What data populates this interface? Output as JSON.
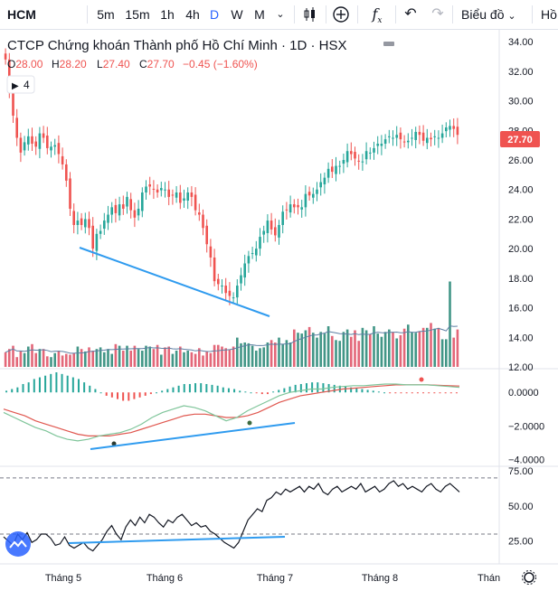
{
  "toolbar": {
    "symbol": "HCM",
    "intervals": [
      "5m",
      "15m",
      "1h",
      "4h",
      "D",
      "W",
      "M"
    ],
    "active_interval": "D",
    "chart_type_label": "Biểu đồ",
    "overflow_label": "Hồ"
  },
  "legend": {
    "title": "CTCP Chứng khoán Thành phố Hồ Chí Minh · 1D · HSX",
    "o_label": "O",
    "o_value": "28.00",
    "h_label": "H",
    "h_value": "28.20",
    "l_label": "L",
    "l_value": "27.40",
    "c_label": "C",
    "c_value": "27.70",
    "change": "−0.45 (−1.60%)",
    "indicators_count": "4"
  },
  "colors": {
    "up": "#26a69a",
    "down": "#ef5350",
    "volume_up": "#2e8b7a",
    "volume_down": "#e0576a",
    "trendline": "#2f9bef",
    "price_tag": "#ef5350"
  },
  "chart_data": {
    "type": "candlestick",
    "price_axis": {
      "ticks": [
        "34.00",
        "32.00",
        "30.00",
        "28.00",
        "26.00",
        "24.00",
        "22.00",
        "20.00",
        "18.00",
        "16.00",
        "14.00",
        "12.00"
      ],
      "range": [
        12,
        34.5
      ]
    },
    "last_price": "27.70",
    "x_labels": [
      "Tháng 5",
      "Tháng 6",
      "Tháng 7",
      "Tháng 8",
      "Thán"
    ],
    "closes": [
      32.8,
      30.6,
      29.0,
      27.5,
      26.5,
      27.2,
      27.6,
      27.1,
      26.9,
      27.8,
      27.5,
      26.8,
      26.9,
      27.0,
      26.4,
      25.7,
      24.6,
      22.7,
      21.6,
      21.9,
      21.6,
      22.0,
      21.4,
      20.0,
      21.0,
      21.2,
      21.9,
      22.3,
      22.8,
      22.4,
      23.0,
      22.7,
      23.5,
      22.6,
      22.1,
      22.7,
      23.8,
      24.2,
      24.2,
      24.0,
      23.8,
      24.1,
      24.0,
      23.5,
      23.6,
      23.8,
      23.1,
      23.4,
      23.8,
      23.5,
      22.6,
      22.3,
      21.4,
      20.3,
      19.4,
      17.8,
      17.6,
      17.5,
      17.0,
      16.8,
      16.7,
      17.5,
      18.2,
      19.0,
      19.5,
      19.7,
      20.0,
      20.8,
      21.2,
      21.9,
      21.3,
      20.9,
      21.6,
      22.5,
      22.6,
      23.0,
      22.8,
      22.8,
      22.8,
      23.7,
      23.6,
      23.7,
      24.0,
      24.5,
      24.8,
      25.4,
      25.2,
      25.6,
      25.6,
      26.0,
      26.6,
      26.4,
      26.1,
      25.9,
      25.9,
      26.6,
      26.5,
      26.8,
      27.1,
      27.1,
      27.4,
      27.6,
      27.5,
      27.7,
      27.4,
      27.2,
      27.3,
      27.5,
      27.9,
      27.7,
      27.3,
      27.5,
      27.4,
      27.6,
      27.5,
      27.8,
      28.2,
      28.3,
      28.1,
      27.7
    ],
    "volume_relative": [
      0.18,
      0.22,
      0.26,
      0.12,
      0.2,
      0.17,
      0.25,
      0.28,
      0.17,
      0.22,
      0.22,
      0.13,
      0.12,
      0.17,
      0.2,
      0.14,
      0.16,
      0.15,
      0.17,
      0.25,
      0.22,
      0.19,
      0.24,
      0.2,
      0.22,
      0.24,
      0.18,
      0.22,
      0.16,
      0.28,
      0.26,
      0.2,
      0.26,
      0.2,
      0.26,
      0.22,
      0.2,
      0.26,
      0.25,
      0.22,
      0.27,
      0.15,
      0.24,
      0.25,
      0.16,
      0.2,
      0.25,
      0.18,
      0.2,
      0.18,
      0.16,
      0.23,
      0.14,
      0.19,
      0.17,
      0.27,
      0.27,
      0.25,
      0.23,
      0.21,
      0.25,
      0.36,
      0.29,
      0.3,
      0.29,
      0.26,
      0.2,
      0.23,
      0.24,
      0.3,
      0.33,
      0.3,
      0.36,
      0.28,
      0.33,
      0.3,
      0.46,
      0.42,
      0.41,
      0.45,
      0.49,
      0.42,
      0.36,
      0.43,
      0.41,
      0.5,
      0.38,
      0.33,
      0.32,
      0.43,
      0.46,
      0.37,
      0.45,
      0.32,
      0.48,
      0.45,
      0.4,
      0.5,
      0.41,
      0.37,
      0.43,
      0.46,
      0.43,
      0.35,
      0.39,
      0.47,
      0.52,
      0.43,
      0.42,
      0.44,
      0.48,
      0.48,
      0.54,
      0.47,
      0.48,
      0.34,
      0.34,
      1.05,
      0.36,
      0.46
    ],
    "volume_ma_relative": 0.22,
    "macd": {
      "axis_ticks": [
        "0.0000",
        "−2.0000",
        "−4.0000"
      ],
      "range": [
        -4.2,
        1.2
      ],
      "macd_line": [
        -1.2,
        -1.5,
        -1.8,
        -2.1,
        -2.3,
        -2.6,
        -2.8,
        -2.9,
        -2.8,
        -2.6,
        -2.5,
        -2.4,
        -2.2,
        -1.9,
        -1.5,
        -1.2,
        -1.0,
        -0.8,
        -0.9,
        -1.1,
        -1.4,
        -1.7,
        -1.5,
        -1.1,
        -0.8,
        -0.5,
        -0.2,
        0.0,
        0.1,
        0.2,
        0.2,
        0.3,
        0.35,
        0.4,
        0.4,
        0.45,
        0.5,
        0.5,
        0.45,
        0.45,
        0.45,
        0.4,
        0.35,
        0.3
      ],
      "signal_line": [
        -1.0,
        -1.2,
        -1.4,
        -1.7,
        -1.9,
        -2.1,
        -2.3,
        -2.5,
        -2.6,
        -2.6,
        -2.6,
        -2.5,
        -2.4,
        -2.2,
        -2.0,
        -1.8,
        -1.6,
        -1.4,
        -1.3,
        -1.3,
        -1.4,
        -1.5,
        -1.5,
        -1.4,
        -1.2,
        -0.9,
        -0.6,
        -0.4,
        -0.2,
        -0.1,
        0.0,
        0.1,
        0.2,
        0.25,
        0.3,
        0.35,
        0.4,
        0.45,
        0.45,
        0.45,
        0.45,
        0.42,
        0.4,
        0.38
      ],
      "histogram": [
        0.1,
        0.2,
        0.3,
        0.5,
        0.6,
        0.8,
        0.9,
        1.0,
        1.1,
        1.2,
        1.1,
        1.0,
        0.9,
        0.8,
        0.6,
        0.4,
        0.2,
        0.0,
        -0.2,
        -0.3,
        -0.4,
        -0.5,
        -0.5,
        -0.4,
        -0.3,
        -0.2,
        -0.1,
        0.0,
        0.1,
        0.2,
        0.3,
        0.4,
        0.5,
        0.5,
        0.55,
        0.55,
        0.5,
        0.45,
        0.4,
        0.3,
        0.25,
        0.2,
        0.1,
        0.05,
        0.0,
        -0.05,
        -0.1,
        -0.1,
        0.05,
        0.15,
        0.25,
        0.35,
        0.45,
        0.5,
        0.55,
        0.6,
        0.6,
        0.55,
        0.5,
        0.45,
        0.4,
        0.35,
        0.3,
        0.25,
        0.2,
        0.15,
        0.1,
        0.05,
        0.0,
        -0.02,
        -0.03,
        -0.04,
        -0.03,
        -0.02,
        -0.01,
        -0.01,
        -0.02,
        -0.03,
        -0.03,
        -0.04,
        -0.04,
        -0.05
      ]
    },
    "rsi": {
      "axis_ticks": [
        "75.00",
        "50.00",
        "25.00"
      ],
      "range": [
        10,
        77
      ],
      "upper_band": 70,
      "lower_band": 30,
      "values": [
        28,
        25,
        22,
        30,
        26,
        31,
        24,
        26,
        30,
        30,
        27,
        22,
        23,
        28,
        22,
        20,
        22,
        24,
        20,
        18,
        22,
        26,
        32,
        36,
        30,
        26,
        35,
        40,
        36,
        42,
        38,
        44,
        42,
        38,
        35,
        40,
        38,
        42,
        44,
        40,
        36,
        38,
        35,
        36,
        32,
        30,
        27,
        24,
        22,
        20,
        24,
        32,
        40,
        44,
        48,
        46,
        54,
        56,
        60,
        58,
        62,
        60,
        62,
        64,
        60,
        64,
        62,
        66,
        60,
        58,
        62,
        64,
        60,
        62,
        64,
        62,
        66,
        60,
        62,
        64,
        60,
        62,
        66,
        68,
        64,
        66,
        62,
        64,
        62,
        60,
        64,
        66,
        62,
        60,
        64,
        66,
        63,
        60
      ]
    }
  }
}
